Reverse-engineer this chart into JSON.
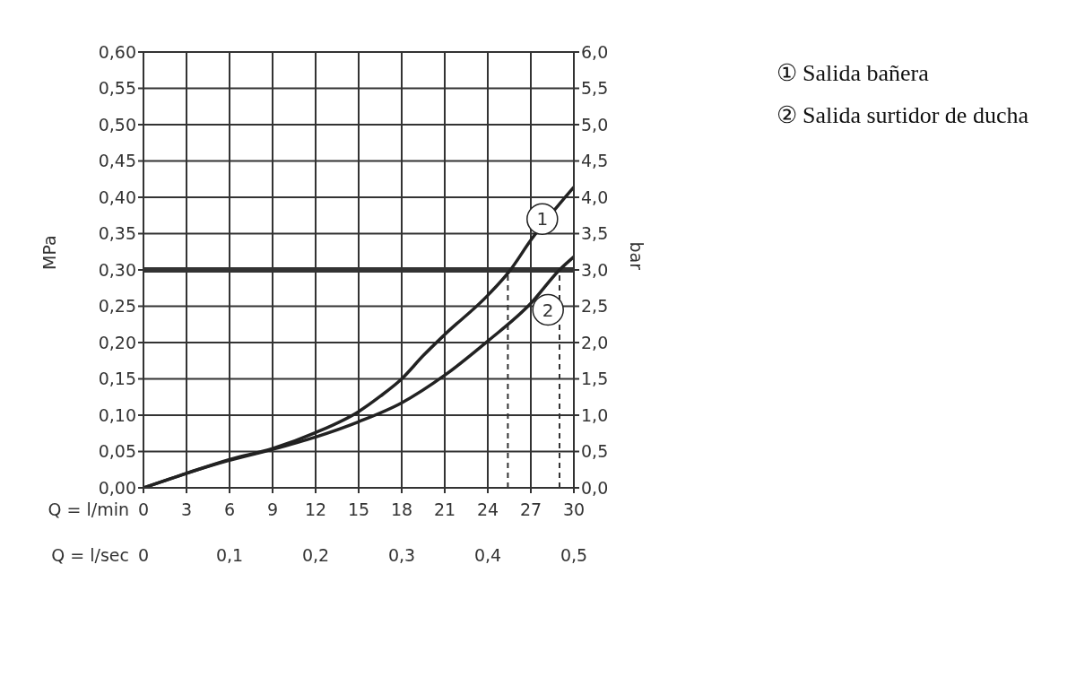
{
  "chart_data": {
    "type": "line",
    "ylabel": "MPa",
    "y2label": "bar",
    "xlabel": "Q = l/min",
    "x2label": "Q = l/sec",
    "xlim": [
      0,
      30
    ],
    "xticks": [
      0,
      3,
      6,
      9,
      12,
      15,
      18,
      21,
      24,
      27,
      30
    ],
    "x2lim": [
      0,
      0.5
    ],
    "x2ticks": [
      0,
      {
        "value": 0.1,
        "label": "0,1"
      },
      {
        "value": 0.2,
        "label": "0,2"
      },
      {
        "value": 0.3,
        "label": "0,3"
      },
      {
        "value": 0.4,
        "label": "0,4"
      },
      {
        "value": 0.5,
        "label": "0,5"
      }
    ],
    "ylim": [
      0,
      0.6
    ],
    "yticks": [
      {
        "value": 0,
        "label": "0,00"
      },
      {
        "value": 0.05,
        "label": "0,05"
      },
      {
        "value": 0.1,
        "label": "0,10"
      },
      {
        "value": 0.15,
        "label": "0,15"
      },
      {
        "value": 0.2,
        "label": "0,20"
      },
      {
        "value": 0.25,
        "label": "0,25"
      },
      {
        "value": 0.3,
        "label": "0,30"
      },
      {
        "value": 0.35,
        "label": "0,35"
      },
      {
        "value": 0.4,
        "label": "0,40"
      },
      {
        "value": 0.45,
        "label": "0,45"
      },
      {
        "value": 0.5,
        "label": "0,50"
      },
      {
        "value": 0.55,
        "label": "0,55"
      },
      {
        "value": 0.6,
        "label": "0,60"
      }
    ],
    "y2lim": [
      0,
      6
    ],
    "y2ticks": [
      {
        "value": 0,
        "label": "0,0"
      },
      {
        "value": 0.5,
        "label": "0,5"
      },
      {
        "value": 1,
        "label": "1,0"
      },
      {
        "value": 1.5,
        "label": "1,5"
      },
      {
        "value": 2,
        "label": "2,0"
      },
      {
        "value": 2.5,
        "label": "2,5"
      },
      {
        "value": 3,
        "label": "3,0"
      },
      {
        "value": 3.5,
        "label": "3,5"
      },
      {
        "value": 4,
        "label": "4,0"
      },
      {
        "value": 4.5,
        "label": "4,5"
      },
      {
        "value": 5,
        "label": "5,0"
      },
      {
        "value": 5.5,
        "label": "5,5"
      },
      {
        "value": 6,
        "label": "6,0"
      }
    ],
    "grid": true,
    "legend": "top right",
    "series": [
      {
        "name": "① Salida bañera",
        "color": "#222222",
        "x": [
          0,
          3,
          6,
          9,
          12,
          15,
          16.5,
          18,
          19.5,
          21,
          24,
          25.5,
          27,
          30
        ],
        "values": [
          0,
          0.02,
          0.039,
          0.054,
          0.076,
          0.105,
          0.126,
          0.15,
          0.182,
          0.211,
          0.265,
          0.298,
          0.341,
          0.414
        ]
      },
      {
        "name": "② Salida surtidor de ducha",
        "color": "#222222",
        "x": [
          0,
          3,
          6,
          9,
          12,
          15,
          18,
          21,
          24,
          27,
          29,
          30
        ],
        "values": [
          0,
          0.02,
          0.038,
          0.053,
          0.07,
          0.091,
          0.117,
          0.155,
          0.202,
          0.254,
          0.3,
          0.318
        ]
      }
    ],
    "ref_lines": [
      {
        "axis": "y",
        "value": 0.3,
        "color": "#333333"
      },
      {
        "axis": "x",
        "value": 25.4,
        "line_style": "dashed",
        "color": "#333333"
      },
      {
        "axis": "x",
        "value": 29,
        "line_style": "dashed",
        "color": "#333333"
      }
    ],
    "annotations": [
      {
        "text": "1",
        "x": 27.8,
        "y": 0.37
      },
      {
        "text": "2",
        "x": 28.2,
        "y": 0.245
      }
    ]
  }
}
